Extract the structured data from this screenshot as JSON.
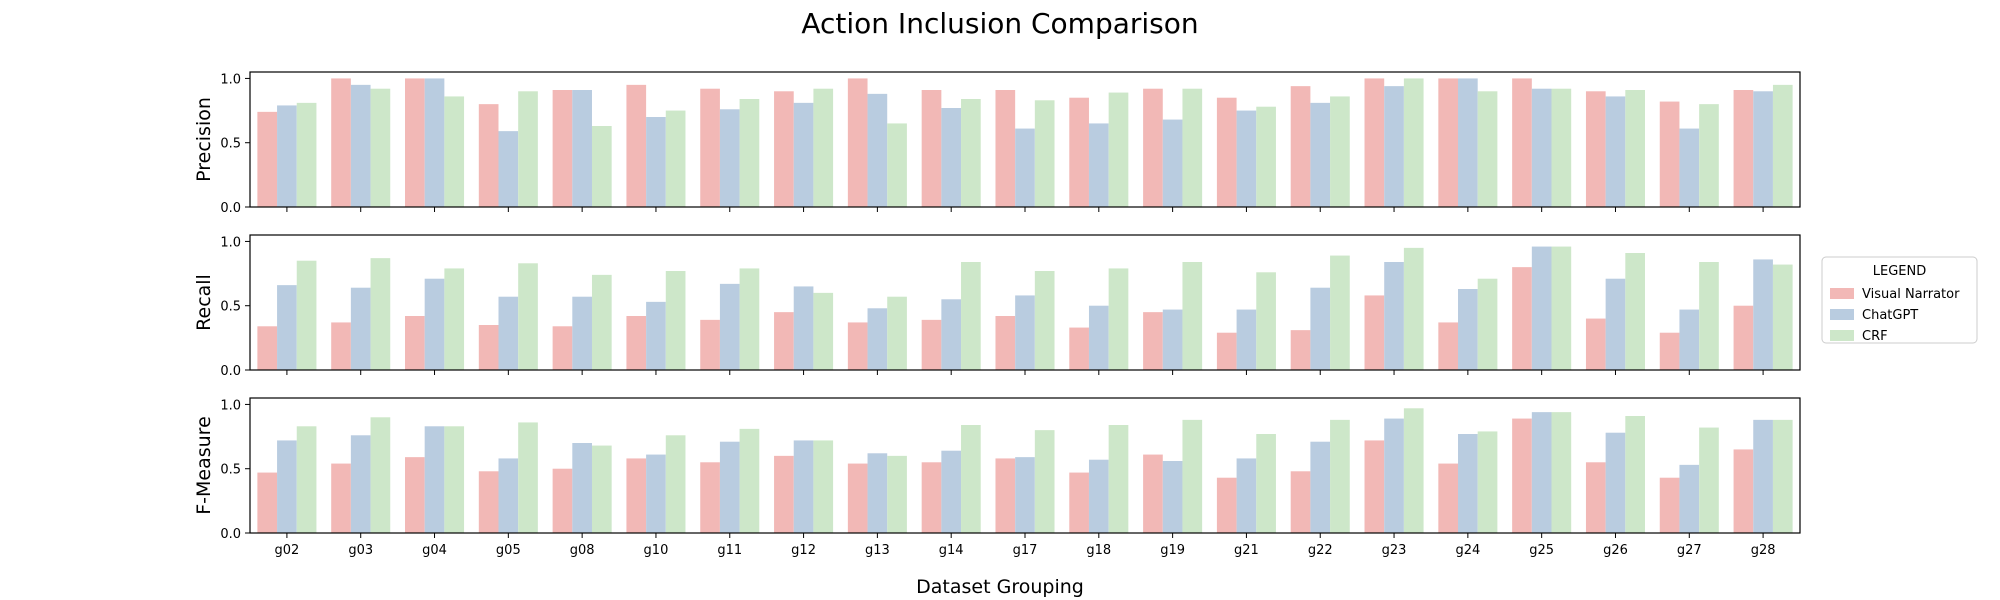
{
  "chart_data": {
    "type": "bar",
    "title": "Action Inclusion Comparison",
    "xlabel": "Dataset Grouping",
    "categories": [
      "g02",
      "g03",
      "g04",
      "g05",
      "g08",
      "g10",
      "g11",
      "g12",
      "g13",
      "g14",
      "g17",
      "g18",
      "g19",
      "g21",
      "g22",
      "g23",
      "g24",
      "g25",
      "g26",
      "g27",
      "g28"
    ],
    "legend": {
      "title": "LEGEND",
      "placement": "right",
      "entries": [
        "Visual Narrator",
        "ChatGPT",
        "CRF"
      ]
    },
    "colors": {
      "Visual Narrator": "#f2b8b6",
      "ChatGPT": "#b9cce0",
      "CRF": "#cde7c9"
    },
    "yticks": [
      "0.0",
      "0.5",
      "1.0"
    ],
    "ylim": [
      0,
      1.05
    ],
    "panels": [
      {
        "ylabel": "Precision",
        "series": [
          {
            "name": "Visual Narrator",
            "values": [
              0.74,
              1.0,
              1.0,
              0.8,
              0.91,
              0.95,
              0.92,
              0.9,
              1.0,
              0.91,
              0.91,
              0.85,
              0.92,
              0.85,
              0.94,
              1.0,
              1.0,
              1.0,
              0.9,
              0.82,
              0.91
            ]
          },
          {
            "name": "ChatGPT",
            "values": [
              0.79,
              0.95,
              1.0,
              0.59,
              0.91,
              0.7,
              0.76,
              0.81,
              0.88,
              0.77,
              0.61,
              0.65,
              0.68,
              0.75,
              0.81,
              0.94,
              1.0,
              0.92,
              0.86,
              0.61,
              0.9
            ]
          },
          {
            "name": "CRF",
            "values": [
              0.81,
              0.92,
              0.86,
              0.9,
              0.63,
              0.75,
              0.84,
              0.92,
              0.65,
              0.84,
              0.83,
              0.89,
              0.92,
              0.78,
              0.86,
              1.0,
              0.9,
              0.92,
              0.91,
              0.8,
              0.95
            ]
          }
        ]
      },
      {
        "ylabel": "Recall",
        "series": [
          {
            "name": "Visual Narrator",
            "values": [
              0.34,
              0.37,
              0.42,
              0.35,
              0.34,
              0.42,
              0.39,
              0.45,
              0.37,
              0.39,
              0.42,
              0.33,
              0.45,
              0.29,
              0.31,
              0.58,
              0.37,
              0.8,
              0.4,
              0.29,
              0.5
            ]
          },
          {
            "name": "ChatGPT",
            "values": [
              0.66,
              0.64,
              0.71,
              0.57,
              0.57,
              0.53,
              0.67,
              0.65,
              0.48,
              0.55,
              0.58,
              0.5,
              0.47,
              0.47,
              0.64,
              0.84,
              0.63,
              0.96,
              0.71,
              0.47,
              0.86
            ]
          },
          {
            "name": "CRF",
            "values": [
              0.85,
              0.87,
              0.79,
              0.83,
              0.74,
              0.77,
              0.79,
              0.6,
              0.57,
              0.84,
              0.77,
              0.79,
              0.84,
              0.76,
              0.89,
              0.95,
              0.71,
              0.96,
              0.91,
              0.84,
              0.82
            ]
          }
        ]
      },
      {
        "ylabel": "F-Measure",
        "series": [
          {
            "name": "Visual Narrator",
            "values": [
              0.47,
              0.54,
              0.59,
              0.48,
              0.5,
              0.58,
              0.55,
              0.6,
              0.54,
              0.55,
              0.58,
              0.47,
              0.61,
              0.43,
              0.48,
              0.72,
              0.54,
              0.89,
              0.55,
              0.43,
              0.65
            ]
          },
          {
            "name": "ChatGPT",
            "values": [
              0.72,
              0.76,
              0.83,
              0.58,
              0.7,
              0.61,
              0.71,
              0.72,
              0.62,
              0.64,
              0.59,
              0.57,
              0.56,
              0.58,
              0.71,
              0.89,
              0.77,
              0.94,
              0.78,
              0.53,
              0.88
            ]
          },
          {
            "name": "CRF",
            "values": [
              0.83,
              0.9,
              0.83,
              0.86,
              0.68,
              0.76,
              0.81,
              0.72,
              0.6,
              0.84,
              0.8,
              0.84,
              0.88,
              0.77,
              0.88,
              0.97,
              0.79,
              0.94,
              0.91,
              0.82,
              0.88
            ]
          }
        ]
      }
    ]
  }
}
